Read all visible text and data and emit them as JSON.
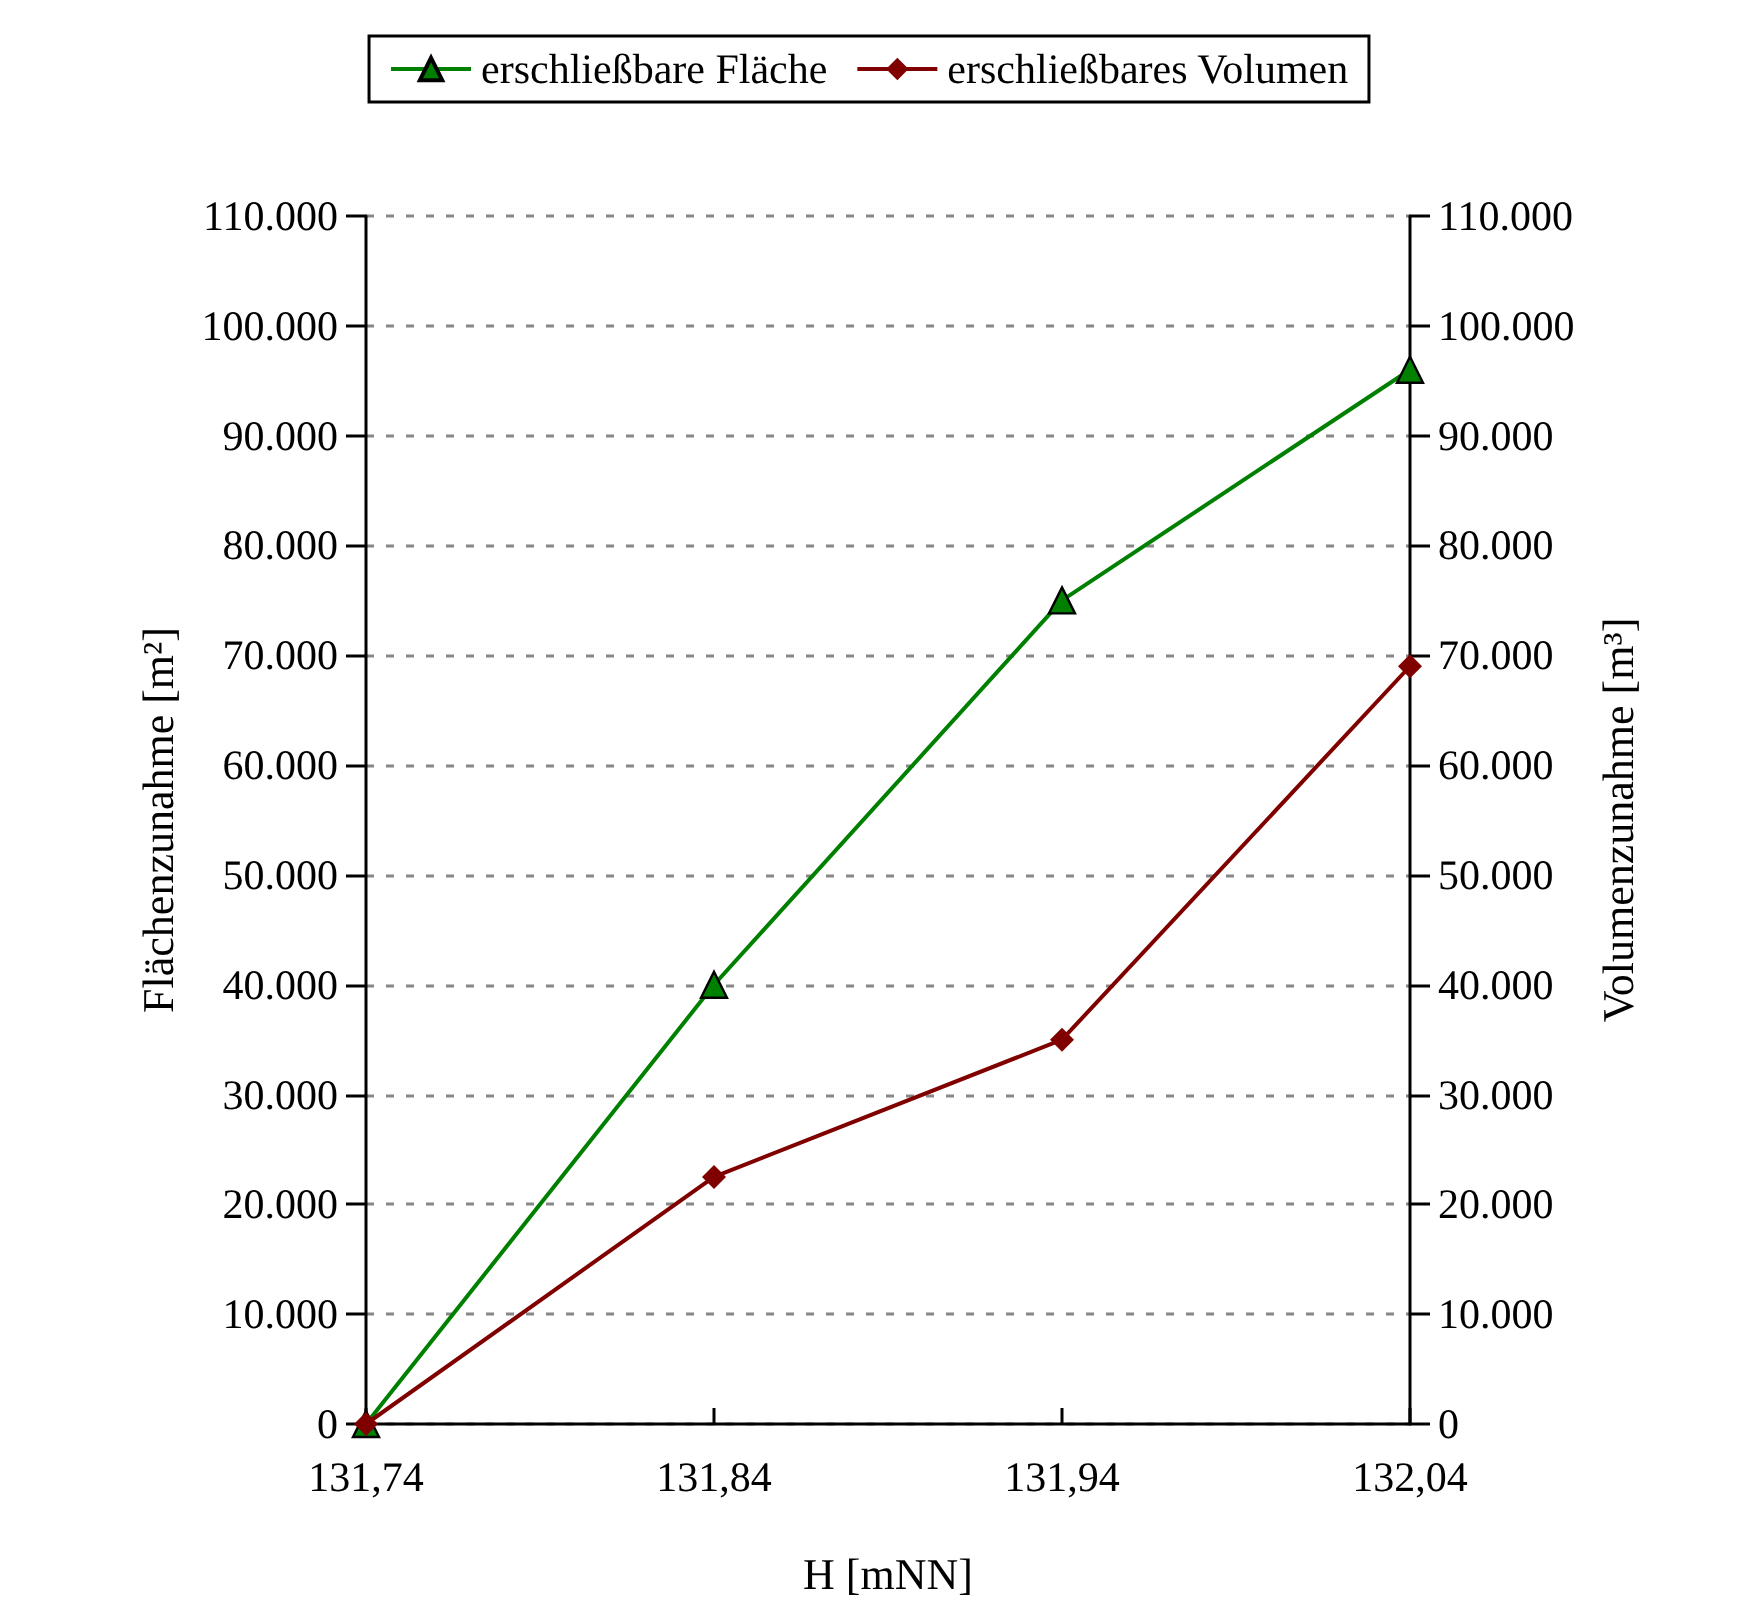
{
  "chart_data": {
    "type": "line",
    "xlabel": "H [mNN]",
    "ylabel": "Flächenzunahme [m²]",
    "y2label": "Volumenzunahme [m³]",
    "categories": [
      "131,74",
      "131,84",
      "131,94",
      "132,04"
    ],
    "series": [
      {
        "name": "erschließbare Fläche",
        "color": "#008000",
        "marker": "triangle",
        "values": [
          0,
          40000,
          75000,
          96000
        ]
      },
      {
        "name": "erschließbares Volumen",
        "color": "#800000",
        "marker": "diamond",
        "axis": "y2",
        "values": [
          0,
          22500,
          35000,
          69000
        ]
      }
    ],
    "ylim": [
      0,
      110000
    ],
    "yticks": [
      {
        "value": 0,
        "label": "0"
      },
      {
        "value": 10000,
        "label": "10.000"
      },
      {
        "value": 20000,
        "label": "20.000"
      },
      {
        "value": 30000,
        "label": "30.000"
      },
      {
        "value": 40000,
        "label": "40.000"
      },
      {
        "value": 50000,
        "label": "50.000"
      },
      {
        "value": 60000,
        "label": "60.000"
      },
      {
        "value": 70000,
        "label": "70.000"
      },
      {
        "value": 80000,
        "label": "80.000"
      },
      {
        "value": 90000,
        "label": "90.000"
      },
      {
        "value": 100000,
        "label": "100.000"
      },
      {
        "value": 110000,
        "label": "110.000"
      }
    ],
    "y2lim": [
      0,
      110000
    ],
    "y2ticks": [
      {
        "value": 0,
        "label": "0"
      },
      {
        "value": 10000,
        "label": "10.000"
      },
      {
        "value": 20000,
        "label": "20.000"
      },
      {
        "value": 30000,
        "label": "30.000"
      },
      {
        "value": 40000,
        "label": "40.000"
      },
      {
        "value": 50000,
        "label": "50.000"
      },
      {
        "value": 60000,
        "label": "60.000"
      },
      {
        "value": 70000,
        "label": "70.000"
      },
      {
        "value": 80000,
        "label": "80.000"
      },
      {
        "value": 90000,
        "label": "90.000"
      },
      {
        "value": 100000,
        "label": "100.000"
      },
      {
        "value": 110000,
        "label": "110.000"
      }
    ],
    "grid": "y",
    "legend": "top",
    "line_style": "solid"
  }
}
